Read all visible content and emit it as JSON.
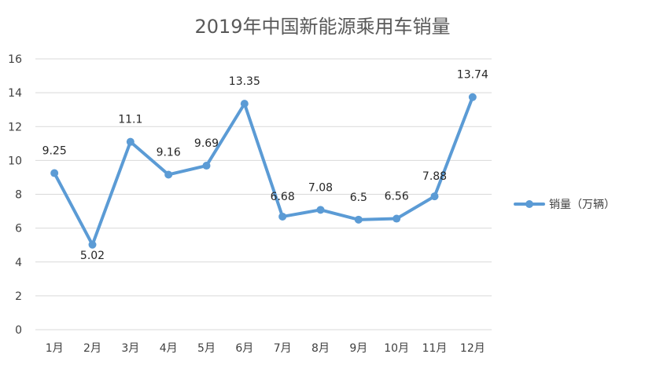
{
  "chart_data": {
    "type": "line",
    "title": "2019年中国新能源乘用车销量",
    "categories": [
      "1月",
      "2月",
      "3月",
      "4月",
      "5月",
      "6月",
      "7月",
      "8月",
      "9月",
      "10月",
      "11月",
      "12月"
    ],
    "series": [
      {
        "name": "销量（万辆）",
        "values": [
          9.25,
          5.02,
          11.1,
          9.16,
          9.69,
          13.35,
          6.68,
          7.08,
          6.5,
          6.56,
          7.88,
          13.74
        ],
        "labels": [
          "9.25",
          "5.02",
          "11.1",
          "9.16",
          "9.69",
          "13.35",
          "6.68",
          "7.08",
          "6.5",
          "6.56",
          "7.88",
          "13.74"
        ],
        "color": "#5b9bd5"
      }
    ],
    "ylim": [
      0,
      16
    ],
    "yticks": [
      0,
      2,
      4,
      6,
      8,
      10,
      12,
      14,
      16
    ],
    "grid": true,
    "legend_position": "right"
  }
}
